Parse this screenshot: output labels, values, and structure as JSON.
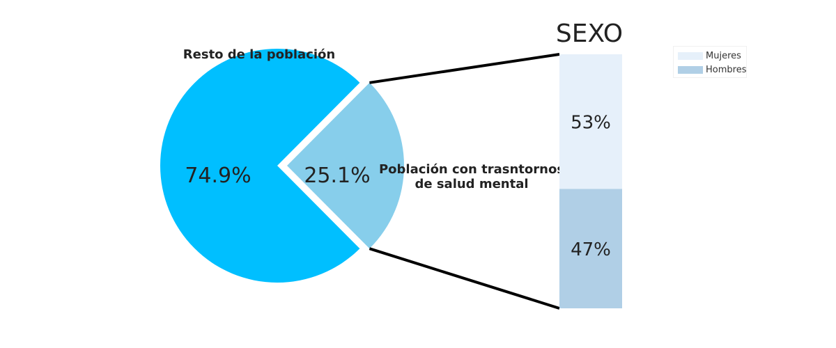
{
  "chart_data": [
    {
      "type": "pie",
      "slices": [
        {
          "label": "Resto de la población",
          "value": 74.9,
          "value_label": "74.9%",
          "color": "#00BFFF"
        },
        {
          "label": "Población con trasntornos\nde salud mental",
          "value": 25.1,
          "value_label": "25.1%",
          "color": "#87CEEB",
          "exploded": true
        }
      ]
    },
    {
      "type": "bar",
      "stacked": true,
      "title": "SEXO",
      "segments": [
        {
          "name": "Mujeres",
          "value": 53,
          "value_label": "53%",
          "color": "#E6F0FA"
        },
        {
          "name": "Hombres",
          "value": 47,
          "value_label": "47%",
          "color": "#B0CFE6"
        }
      ],
      "legend": {
        "position": "top-right",
        "entries": [
          "Mujeres",
          "Hombres"
        ]
      }
    }
  ]
}
